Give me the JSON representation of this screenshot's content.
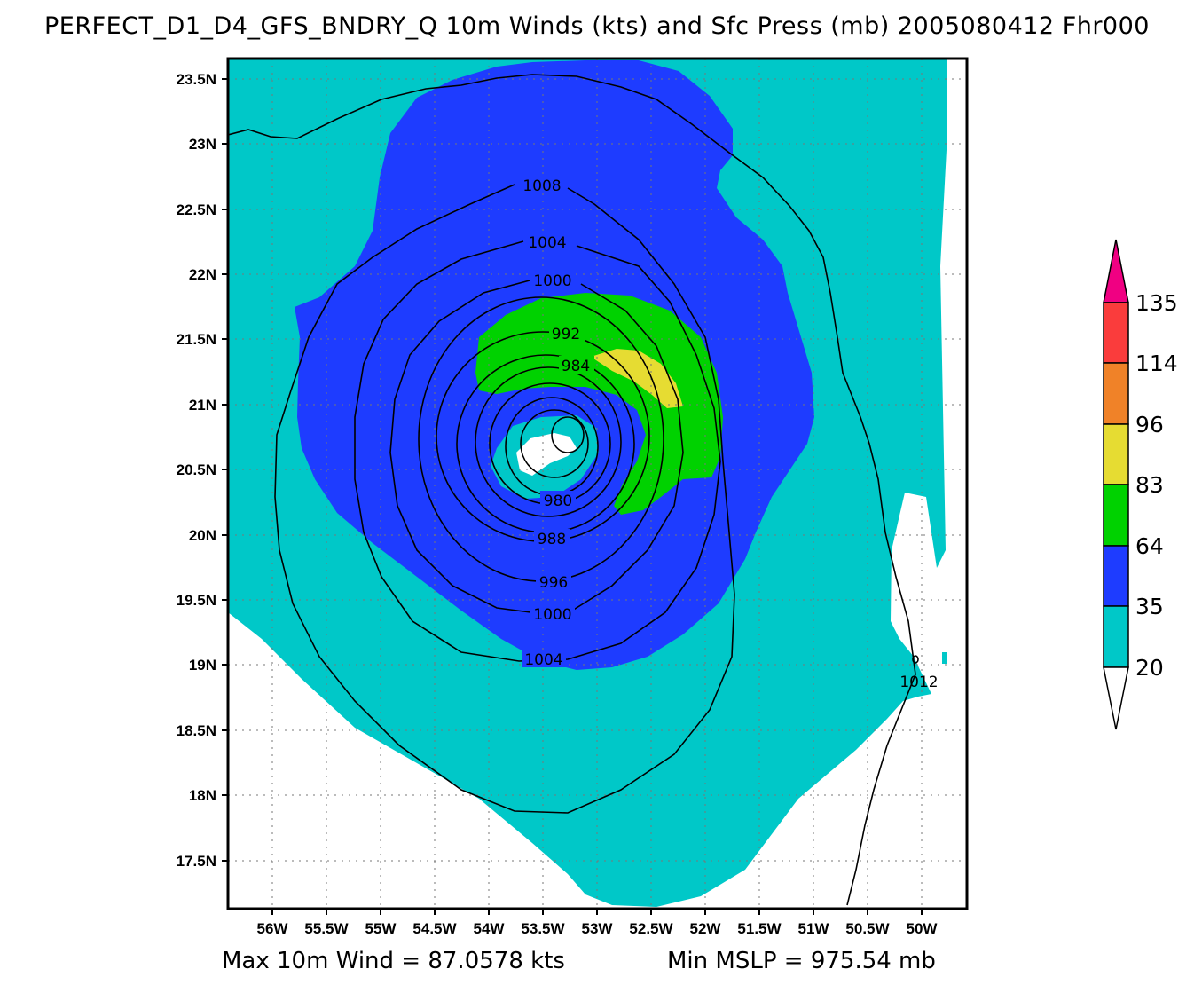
{
  "title": "PERFECT_D1_D4_GFS_BNDRY_Q 10m Winds (kts) and Sfc Press (mb) 2005080412 Fhr000",
  "footer": {
    "max_wind": "Max 10m Wind = 87.0578 kts",
    "min_mslp": "Min MSLP = 975.54 mb"
  },
  "map": {
    "lat_labels": [
      "23.5N",
      "23N",
      "22.5N",
      "22N",
      "21.5N",
      "21N",
      "20.5N",
      "20N",
      "19.5N",
      "19N",
      "18.5N",
      "18N",
      "17.5N"
    ],
    "lon_labels": [
      "56W",
      "55.5W",
      "55W",
      "54.5W",
      "54W",
      "53.5W",
      "53W",
      "52.5W",
      "52W",
      "51.5W",
      "51W",
      "50.5W",
      "50W"
    ],
    "isobar_labels": [
      "1008",
      "1004",
      "1000",
      "992",
      "984",
      "980",
      "988",
      "996",
      "1000",
      "1004",
      "1012"
    ],
    "grid": "dotted",
    "fill_colors": {
      "20-35": "#00c8c8",
      "35-64": "#1e3cff",
      "64-83": "#00d200",
      "83-96": "#e6dc32",
      "96-114": "#f08228",
      "114-135": "#fa3c3c",
      ">135": "#f00082"
    }
  },
  "colorbar": {
    "labels": [
      "135",
      "114",
      "96",
      "83",
      "64",
      "35",
      "20"
    ],
    "colors": [
      "#f00082",
      "#fa3c3c",
      "#f08228",
      "#e6dc32",
      "#00d200",
      "#1e3cff",
      "#00c8c8",
      "#ffffff"
    ]
  }
}
